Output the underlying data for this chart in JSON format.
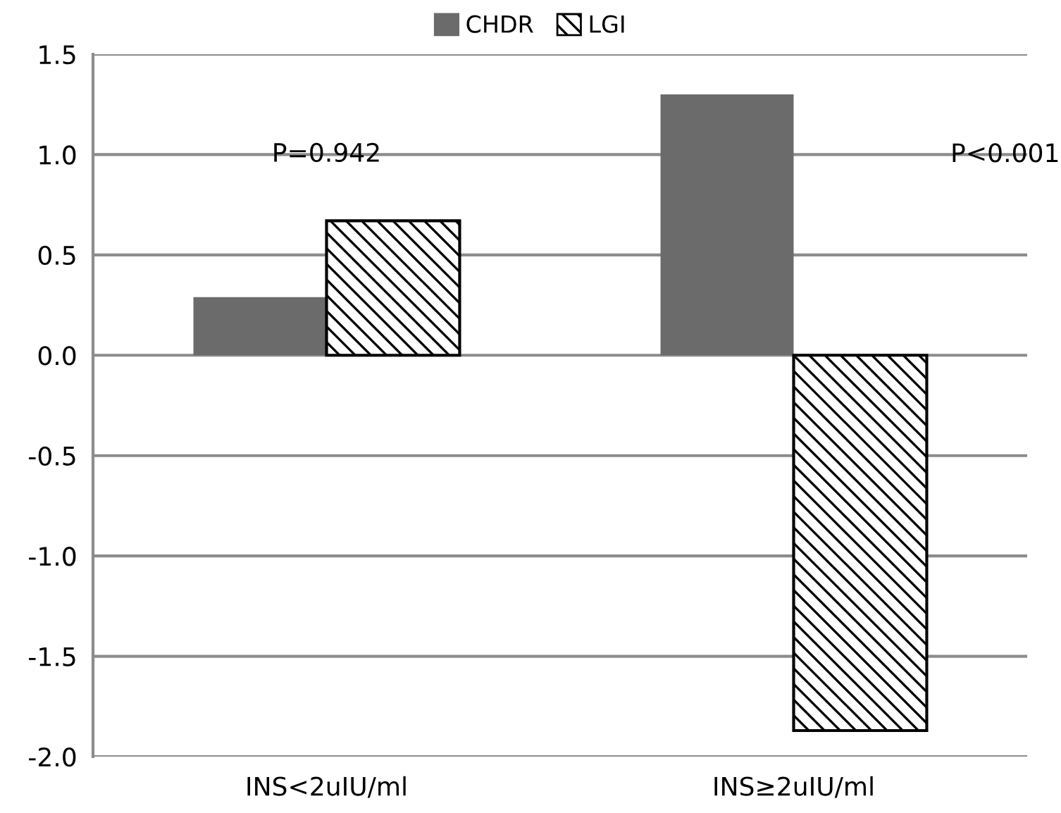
{
  "chart_data": {
    "type": "bar",
    "categories": [
      "INS<2uIU/ml",
      "INS≥2uIU/ml"
    ],
    "series": [
      {
        "name": "CHDR",
        "color": "#6b6b6b",
        "values": [
          0.29,
          1.3
        ]
      },
      {
        "name": "LGI",
        "color": "#000000",
        "values": [
          0.67,
          -1.87
        ]
      }
    ],
    "ylim": [
      -2.0,
      1.5
    ],
    "yticks": [
      {
        "value": -2.0,
        "label": "-2.0"
      },
      {
        "value": -1.5,
        "label": "-1.5"
      },
      {
        "value": -1.0,
        "label": "-1.0"
      },
      {
        "value": -0.5,
        "label": "-0.5"
      },
      {
        "value": 0.0,
        "label": "0.0"
      },
      {
        "value": 0.5,
        "label": "0.5"
      },
      {
        "value": 1.0,
        "label": "1.0"
      },
      {
        "value": 1.5,
        "label": "1.5"
      }
    ],
    "grid": "y",
    "legend": "top",
    "annotations": [
      "P=0.942",
      "P<0.001"
    ]
  }
}
